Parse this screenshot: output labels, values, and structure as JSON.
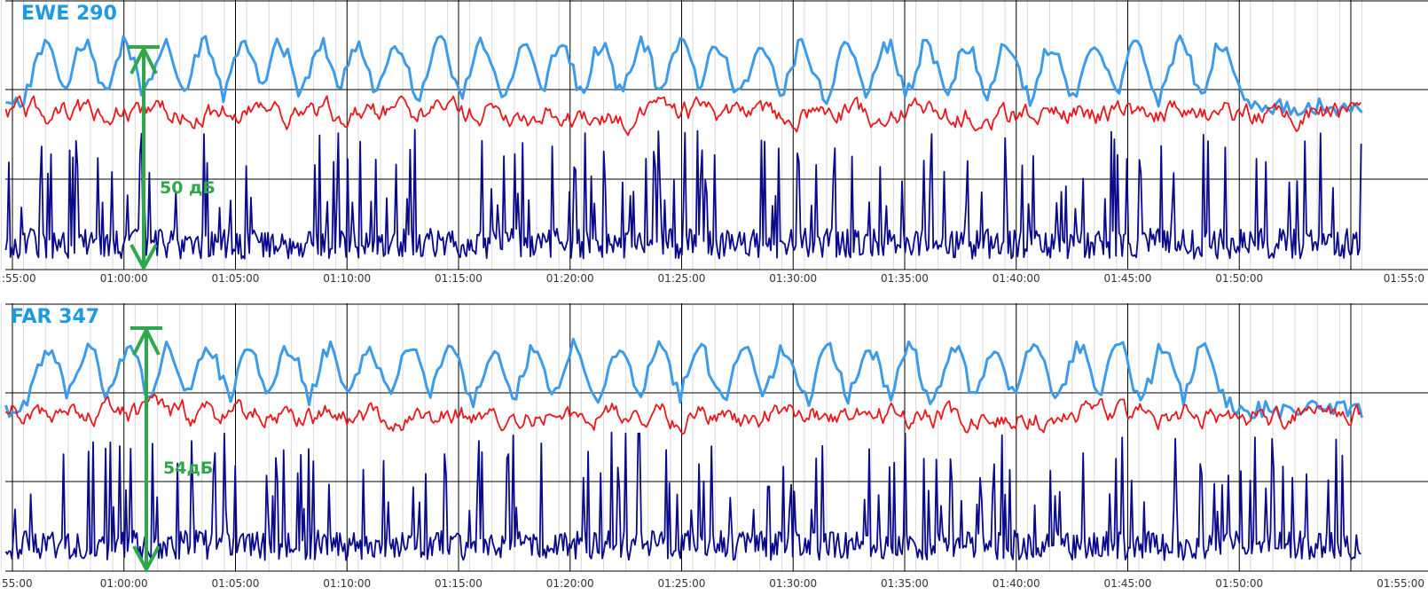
{
  "colors": {
    "light_blue": "#3d9be9",
    "red": "#e8191c",
    "navy": "#0a0a8c",
    "annotation_green": "#2ea84a",
    "title_blue": "#1e9be0",
    "grid_major": "#000000",
    "grid_minor": "#d9d9d9"
  },
  "chart_data": [
    {
      "type": "line",
      "title": "EWE 290",
      "x_axis": {
        "start": "00:55:00",
        "end": "01:55:00",
        "tick_labels": [
          ":55:00",
          "01:00:00",
          "01:05:00",
          "01:10:00",
          "01:15:00",
          "01:20:00",
          "01:25:00",
          "01:30:00",
          "01:35:00",
          "01:40:00",
          "01:45:00",
          "01:50:00",
          "01:55:0"
        ],
        "minor_grid_interval": "1 min"
      },
      "horizontal_gridlines": 3,
      "grid": true,
      "series": [
        {
          "color": "#3d9be9",
          "level": "upper band",
          "peak_minutes": [
            1.5,
            3.2,
            5.0,
            6.8,
            8.6,
            10.4,
            12.0,
            13.8,
            15.4,
            17.2,
            19.2,
            21.0,
            23.0,
            24.6,
            26.4,
            28.2,
            30.0,
            31.6,
            33.6,
            35.4,
            37.4,
            39.2,
            41.0,
            42.8,
            44.6,
            46.6,
            48.6,
            50.4,
            52.4,
            54.2
          ]
        },
        {
          "color": "#e8191c",
          "level": "middle band"
        },
        {
          "color": "#0a0a8c",
          "level": "baseline band"
        }
      ],
      "annotation": {
        "text": "50 дБ",
        "type": "double-arrow",
        "at": "01:00:00"
      }
    },
    {
      "type": "line",
      "title": "FAR 347",
      "x_axis": {
        "start": "00:55:00",
        "end": "01:55:00",
        "tick_labels": [
          "55:00",
          "01:00:00",
          "01:05:00",
          "01:10:00",
          "01:15:00",
          "01:20:00",
          "01:25:00",
          "01:30:00",
          "01:35:00",
          "01:40:00",
          "01:45:00",
          "01:50:00",
          "01:55:00"
        ],
        "minor_grid_interval": "1 min"
      },
      "horizontal_gridlines": 3,
      "grid": true,
      "series": [
        {
          "color": "#3d9be9",
          "level": "upper band",
          "peak_minutes": [
            1.6,
            3.4,
            5.2,
            7.0,
            8.8,
            10.6,
            12.4,
            14.2,
            16.0,
            17.8,
            19.6,
            21.6,
            23.4,
            25.2,
            27.2,
            29.0,
            30.8,
            32.8,
            34.6,
            36.6,
            38.4,
            40.2,
            42.2,
            44.0,
            45.8,
            47.8,
            49.6,
            51.6,
            53.4
          ]
        },
        {
          "color": "#e8191c",
          "level": "middle band"
        },
        {
          "color": "#0a0a8c",
          "level": "baseline band"
        }
      ],
      "annotation": {
        "text": "54дБ",
        "type": "double-arrow",
        "at": "01:00:00"
      }
    }
  ]
}
